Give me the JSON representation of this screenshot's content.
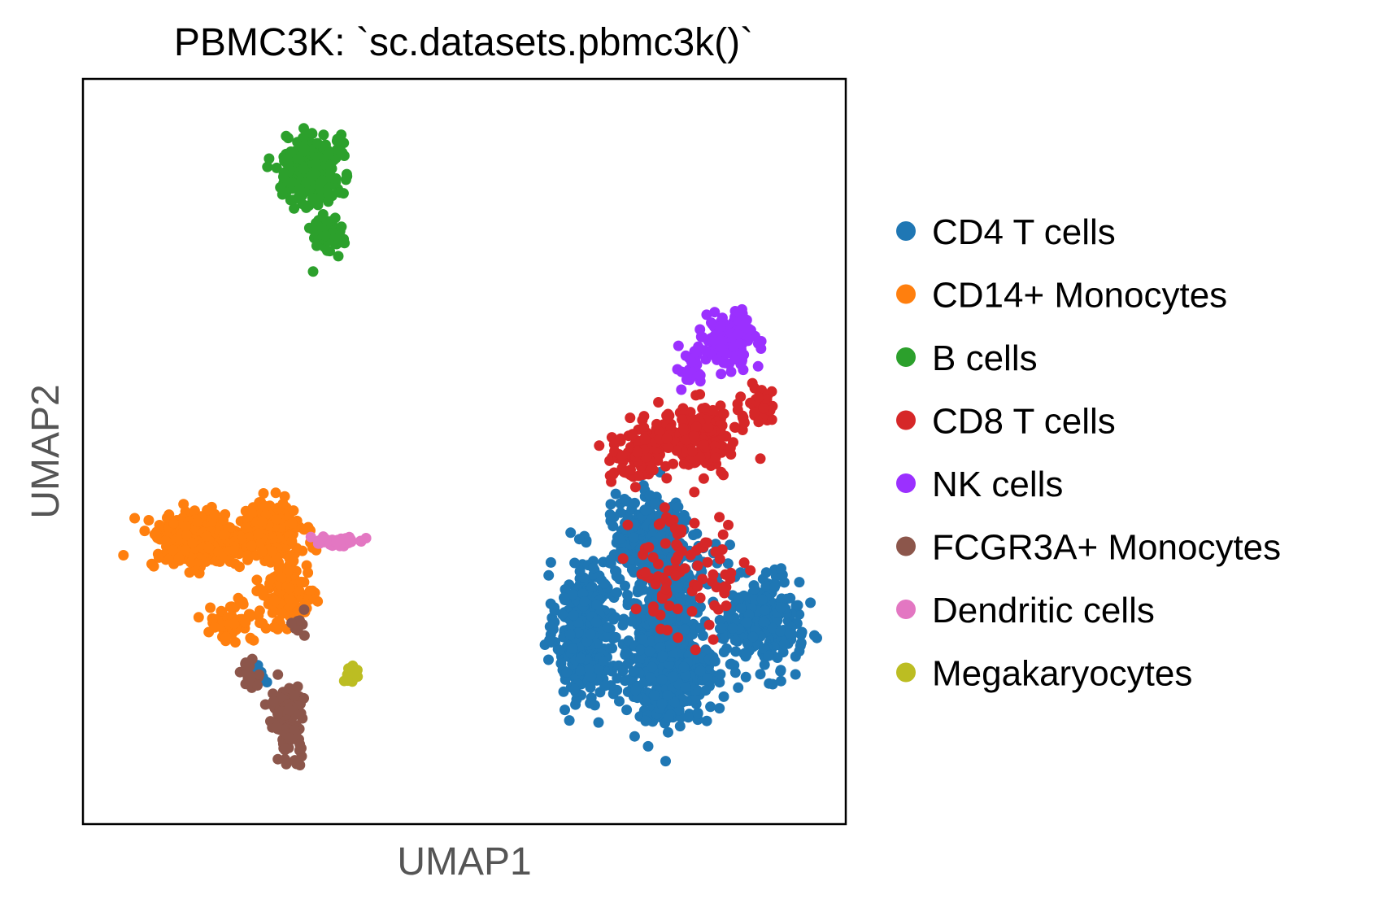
{
  "chart_data": {
    "type": "scatter",
    "title": "PBMC3K: `sc.datasets.pbmc3k()`",
    "xlabel": "UMAP1",
    "ylabel": "UMAP2",
    "xticks": false,
    "yticks": false,
    "grid": false,
    "legend_position": "right",
    "xlim": [
      0,
      10
    ],
    "ylim": [
      0,
      10
    ],
    "series": [
      {
        "name": "CD4 T cells",
        "color": "#1f77b4",
        "clusters": [
          {
            "center": [
              6.6,
              2.6
            ],
            "spread": [
              0.35,
              0.85
            ],
            "count": 420
          },
          {
            "center": [
              7.7,
              2.2
            ],
            "spread": [
              0.55,
              0.75
            ],
            "count": 520
          },
          {
            "center": [
              8.9,
              2.7
            ],
            "spread": [
              0.45,
              0.55
            ],
            "count": 260
          },
          {
            "center": [
              7.4,
              3.9
            ],
            "spread": [
              0.45,
              0.45
            ],
            "count": 220
          },
          {
            "center": [
              7.7,
              3.4
            ],
            "spread": [
              0.45,
              0.45
            ],
            "count": 200
          },
          {
            "center": [
              2.3,
              2.0
            ],
            "spread": [
              0.12,
              0.15
            ],
            "count": 8
          }
        ]
      },
      {
        "name": "CD14+ Monocytes",
        "color": "#ff7f0e",
        "clusters": [
          {
            "center": [
              1.5,
              3.8
            ],
            "spread": [
              0.55,
              0.35
            ],
            "count": 340
          },
          {
            "center": [
              2.4,
              3.9
            ],
            "spread": [
              0.45,
              0.35
            ],
            "count": 260
          },
          {
            "center": [
              2.7,
              3.1
            ],
            "spread": [
              0.3,
              0.4
            ],
            "count": 140
          },
          {
            "center": [
              1.9,
              2.7
            ],
            "spread": [
              0.35,
              0.25
            ],
            "count": 50
          }
        ]
      },
      {
        "name": "B cells",
        "color": "#2ca02c",
        "clusters": [
          {
            "center": [
              3.0,
              8.8
            ],
            "spread": [
              0.32,
              0.4
            ],
            "count": 300
          },
          {
            "center": [
              3.2,
              7.9
            ],
            "spread": [
              0.2,
              0.3
            ],
            "count": 50
          }
        ]
      },
      {
        "name": "CD8 T cells",
        "color": "#d62728",
        "clusters": [
          {
            "center": [
              8.1,
              5.2
            ],
            "spread": [
              0.38,
              0.4
            ],
            "count": 170
          },
          {
            "center": [
              7.3,
              5.0
            ],
            "spread": [
              0.35,
              0.4
            ],
            "count": 110
          },
          {
            "center": [
              7.9,
              3.4
            ],
            "spread": [
              0.7,
              0.8
            ],
            "count": 90
          },
          {
            "center": [
              8.8,
              5.6
            ],
            "spread": [
              0.25,
              0.25
            ],
            "count": 40
          }
        ]
      },
      {
        "name": "NK cells",
        "color": "#9b30ff",
        "clusters": [
          {
            "center": [
              8.5,
              6.5
            ],
            "spread": [
              0.3,
              0.3
            ],
            "count": 150
          },
          {
            "center": [
              8.0,
              6.1
            ],
            "spread": [
              0.2,
              0.3
            ],
            "count": 20
          }
        ]
      },
      {
        "name": "FCGR3A+ Monocytes",
        "color": "#8c564b",
        "clusters": [
          {
            "center": [
              2.7,
              1.4
            ],
            "spread": [
              0.2,
              0.45
            ],
            "count": 120
          },
          {
            "center": [
              2.2,
              2.0
            ],
            "spread": [
              0.15,
              0.15
            ],
            "count": 20
          },
          {
            "center": [
              2.8,
              2.7
            ],
            "spread": [
              0.15,
              0.15
            ],
            "count": 10
          }
        ]
      },
      {
        "name": "Dendritic cells",
        "color": "#e377c2",
        "clusters": [
          {
            "center": [
              3.4,
              3.8
            ],
            "spread": [
              0.3,
              0.07
            ],
            "count": 35
          }
        ]
      },
      {
        "name": "Megakaryocytes",
        "color": "#bcbd22",
        "clusters": [
          {
            "center": [
              3.5,
              2.0
            ],
            "spread": [
              0.08,
              0.1
            ],
            "count": 14
          }
        ]
      }
    ]
  }
}
